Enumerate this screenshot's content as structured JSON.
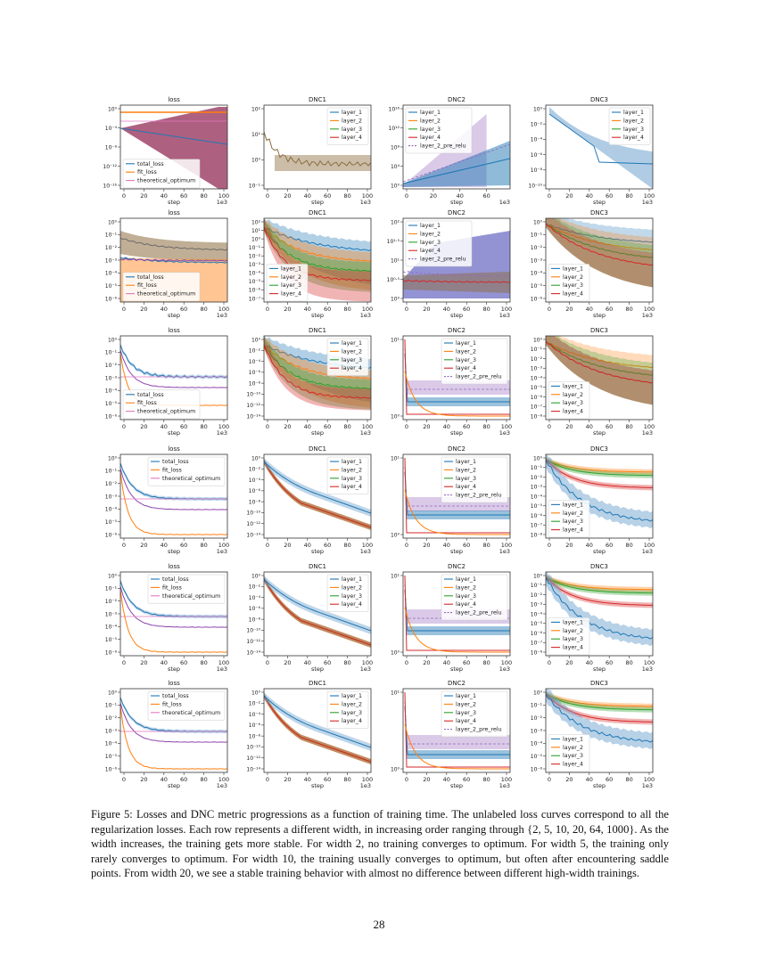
{
  "figure": {
    "x_tick_labels": [
      "0",
      "20",
      "40",
      "60",
      "80",
      "100"
    ],
    "x_tick_labels_dnc2_row1": [
      "0",
      "20",
      "40",
      "60"
    ],
    "xlabel": "step",
    "xscale": "1e3",
    "rows": [
      {
        "width": 2,
        "panels": [
          {
            "title": "loss",
            "y_ticks": [
              "10⁰",
              "10⁻⁴",
              "10⁻⁸",
              "10⁻¹²",
              "10⁻¹⁶"
            ],
            "legend": [
              "total_loss",
              "fit_loss",
              "theoretical_optimum"
            ],
            "legend_pos": "bottom-left"
          },
          {
            "title": "DNC1",
            "y_ticks": [
              "10²",
              "10¹",
              "10⁰",
              "10⁻¹"
            ],
            "legend": [
              "layer_1",
              "layer_2",
              "layer_3",
              "layer_4"
            ],
            "legend_pos": "top-right"
          },
          {
            "title": "DNC2",
            "y_ticks": [
              "10¹⁶",
              "10¹²",
              "10⁸",
              "10⁴",
              "10⁰"
            ],
            "legend": [
              "layer_1",
              "layer_2",
              "layer_3",
              "layer_4",
              "layer_2_pre_relu"
            ],
            "legend_pos": "top-left"
          },
          {
            "title": "DNC3",
            "y_ticks": [
              "10⁰",
              "10⁻²",
              "10⁻⁴",
              "10⁻⁶",
              "10⁻⁸",
              "10⁻¹⁰"
            ],
            "legend": [
              "layer_1",
              "layer_2",
              "layer_3",
              "layer_4"
            ],
            "legend_pos": "top-right"
          }
        ]
      },
      {
        "width": 5,
        "panels": [
          {
            "title": "loss",
            "y_ticks": [
              "10⁰",
              "10⁻¹",
              "10⁻²",
              "10⁻³",
              "10⁻⁴",
              "10⁻⁵",
              "10⁻⁶"
            ],
            "legend": [
              "total_loss",
              "fit_loss",
              "theoretical_optimum"
            ],
            "legend_pos": "bottom-left"
          },
          {
            "title": "DNC1",
            "y_ticks": [
              "10²",
              "10¹",
              "10⁰",
              "10⁻¹",
              "10⁻²",
              "10⁻³",
              "10⁻⁴",
              "10⁻⁵",
              "10⁻⁶",
              "10⁻⁷"
            ],
            "legend": [
              "layer_1",
              "layer_2",
              "layer_3",
              "layer_4"
            ],
            "legend_pos": "bottom-left"
          },
          {
            "title": "DNC2",
            "y_ticks": [
              "10²",
              "10¹·⁵",
              "10¹",
              "10⁰·⁵",
              "10⁰"
            ],
            "legend": [
              "layer_1",
              "layer_2",
              "layer_3",
              "layer_4",
              "layer_2_pre_relu"
            ],
            "legend_pos": "top-left"
          },
          {
            "title": "DNC3",
            "y_ticks": [
              "10⁰",
              "10⁻¹",
              "10⁻²",
              "10⁻³",
              "10⁻⁴",
              "10⁻⁵",
              "10⁻⁶"
            ],
            "legend": [
              "layer_1",
              "layer_2",
              "layer_3",
              "layer_4"
            ],
            "legend_pos": "bottom-left"
          }
        ]
      },
      {
        "width": 10,
        "panels": [
          {
            "title": "loss",
            "y_ticks": [
              "10⁰",
              "10⁻¹",
              "10⁻²",
              "10⁻³",
              "10⁻⁴",
              "10⁻⁵",
              "10⁻⁶"
            ],
            "legend": [
              "total_loss",
              "fit_loss",
              "theoretical_optimum"
            ],
            "legend_pos": "bottom-left"
          },
          {
            "title": "DNC1",
            "y_ticks": [
              "10⁰",
              "10⁻²",
              "10⁻⁴",
              "10⁻⁶",
              "10⁻⁸",
              "10⁻¹⁰",
              "10⁻¹²",
              "10⁻¹⁴"
            ],
            "legend": [
              "layer_1",
              "layer_2",
              "layer_3",
              "layer_4"
            ],
            "legend_pos": "top-right"
          },
          {
            "title": "DNC2",
            "y_ticks": [
              "10¹",
              "10⁰"
            ],
            "legend": [
              "layer_1",
              "layer_2",
              "layer_3",
              "layer_4",
              "layer_2_pre_relu"
            ],
            "legend_pos": "top-right"
          },
          {
            "title": "DNC3",
            "y_ticks": [
              "10⁰",
              "10⁻¹",
              "10⁻²",
              "10⁻³",
              "10⁻⁴",
              "10⁻⁵",
              "10⁻⁶",
              "10⁻⁷",
              "10⁻⁸"
            ],
            "legend": [
              "layer_1",
              "layer_2",
              "layer_3",
              "layer_4"
            ],
            "legend_pos": "bottom-left"
          }
        ]
      },
      {
        "width": 20,
        "panels": [
          {
            "title": "loss",
            "y_ticks": [
              "10⁰",
              "10⁻¹",
              "10⁻²",
              "10⁻³",
              "10⁻⁴",
              "10⁻⁵",
              "10⁻⁶"
            ],
            "legend": [
              "total_loss",
              "fit_loss",
              "theoretical_optimum"
            ],
            "legend_pos": "top-right"
          },
          {
            "title": "DNC1",
            "y_ticks": [
              "10⁰",
              "10⁻²",
              "10⁻⁴",
              "10⁻⁶",
              "10⁻⁸",
              "10⁻¹⁰",
              "10⁻¹²",
              "10⁻¹⁴"
            ],
            "legend": [
              "layer_1",
              "layer_2",
              "layer_3",
              "layer_4"
            ],
            "legend_pos": "top-right"
          },
          {
            "title": "DNC2",
            "y_ticks": [
              "10¹",
              "10⁰"
            ],
            "legend": [
              "layer_1",
              "layer_2",
              "layer_3",
              "layer_4",
              "layer_2_pre_relu"
            ],
            "legend_pos": "top-right"
          },
          {
            "title": "DNC3",
            "y_ticks": [
              "10⁰",
              "10⁻¹",
              "10⁻²",
              "10⁻³",
              "10⁻⁴",
              "10⁻⁵",
              "10⁻⁶",
              "10⁻⁷",
              "10⁻⁸"
            ],
            "legend": [
              "layer_1",
              "layer_2",
              "layer_3",
              "layer_4"
            ],
            "legend_pos": "bottom-left"
          }
        ]
      },
      {
        "width": 64,
        "panels": [
          {
            "title": "loss",
            "y_ticks": [
              "10⁰",
              "10⁻¹",
              "10⁻²",
              "10⁻³",
              "10⁻⁴",
              "10⁻⁵",
              "10⁻⁶"
            ],
            "legend": [
              "total_loss",
              "fit_loss",
              "theoretical_optimum"
            ],
            "legend_pos": "top-right"
          },
          {
            "title": "DNC1",
            "y_ticks": [
              "10⁰",
              "10⁻²",
              "10⁻⁴",
              "10⁻⁶",
              "10⁻⁸",
              "10⁻¹⁰",
              "10⁻¹²",
              "10⁻¹⁴"
            ],
            "legend": [
              "layer_1",
              "layer_2",
              "layer_3",
              "layer_4"
            ],
            "legend_pos": "top-right"
          },
          {
            "title": "DNC2",
            "y_ticks": [
              "10¹",
              "10⁰"
            ],
            "legend": [
              "layer_1",
              "layer_2",
              "layer_3",
              "layer_4",
              "layer_2_pre_relu"
            ],
            "legend_pos": "top-right"
          },
          {
            "title": "DNC3",
            "y_ticks": [
              "10⁰",
              "10⁻¹",
              "10⁻²",
              "10⁻³",
              "10⁻⁴",
              "10⁻⁵",
              "10⁻⁶",
              "10⁻⁷",
              "10⁻⁸"
            ],
            "legend": [
              "layer_1",
              "layer_2",
              "layer_3",
              "layer_4"
            ],
            "legend_pos": "bottom-left"
          }
        ]
      },
      {
        "width": 1000,
        "panels": [
          {
            "title": "loss",
            "y_ticks": [
              "10⁰",
              "10⁻¹",
              "10⁻²",
              "10⁻³",
              "10⁻⁴",
              "10⁻⁵",
              "10⁻⁶"
            ],
            "legend": [
              "total_loss",
              "fit_loss",
              "theoretical_optimum"
            ],
            "legend_pos": "top-right"
          },
          {
            "title": "DNC1",
            "y_ticks": [
              "10⁰",
              "10⁻²",
              "10⁻⁴",
              "10⁻⁶",
              "10⁻⁸",
              "10⁻¹⁰",
              "10⁻¹²",
              "10⁻¹⁴"
            ],
            "legend": [
              "layer_1",
              "layer_2",
              "layer_3",
              "layer_4"
            ],
            "legend_pos": "top-right"
          },
          {
            "title": "DNC2",
            "y_ticks": [
              "10¹",
              "10⁰"
            ],
            "legend": [
              "layer_1",
              "layer_2",
              "layer_3",
              "layer_4",
              "layer_2_pre_relu"
            ],
            "legend_pos": "top-right"
          },
          {
            "title": "DNC3",
            "y_ticks": [
              "10⁰",
              "10⁻¹",
              "10⁻²",
              "10⁻³",
              "10⁻⁴",
              "10⁻⁵",
              "10⁻⁶"
            ],
            "legend": [
              "layer_1",
              "layer_2",
              "layer_3",
              "layer_4"
            ],
            "legend_pos": "bottom-left"
          }
        ]
      }
    ],
    "colors": {
      "layer_1": "#1f77b4",
      "layer_2": "#ff7f0e",
      "layer_3": "#2ca02c",
      "layer_4": "#d62728",
      "layer_2_pre_relu": "#9467bd",
      "total_loss": "#1f77b4",
      "fit_loss": "#ff7f0e",
      "theoretical_optimum": "#e377c2",
      "row1_loss_band": "#a0446a"
    }
  },
  "caption": {
    "label": "Figure 5:",
    "text": "Losses and DNC metric progressions as a function of training time. The unlabeled loss curves correspond to all the regularization losses. Each row represents a different width, in increasing order ranging through {2, 5, 10, 20, 64, 1000}. As the width increases, the training gets more stable. For width 2, no training converges to optimum. For width 5, the training only rarely converges to optimum. For width 10, the training usually converges to optimum, but often after encountering saddle points. From width 20, we see a stable training behavior with almost no difference between different high-width trainings."
  },
  "page_number": "28"
}
